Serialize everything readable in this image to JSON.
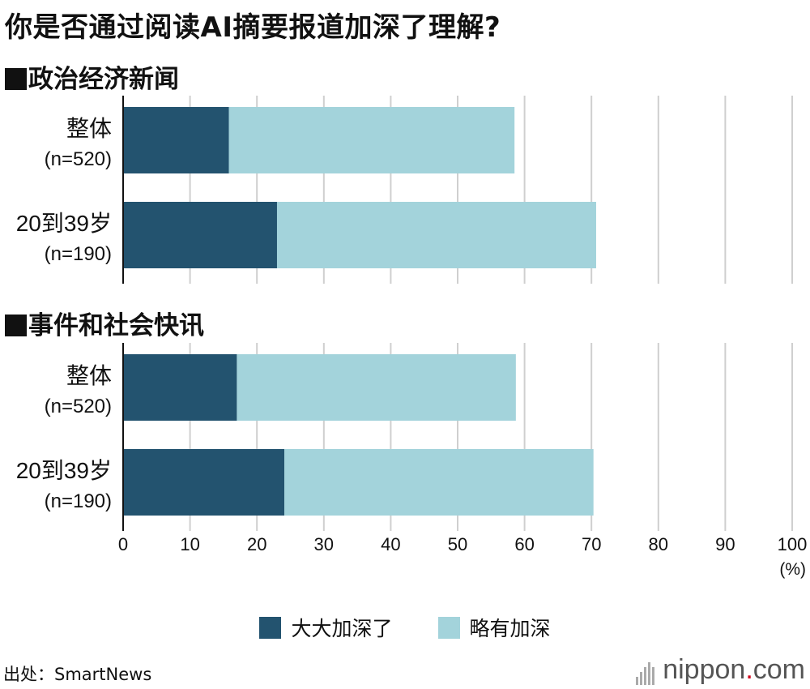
{
  "header": {
    "title": "你是否通过阅读AI摘要报道加深了理解?"
  },
  "chart_data": {
    "type": "bar",
    "stacked": true,
    "orientation": "horizontal",
    "xlim": [
      0,
      100
    ],
    "x_ticks": [
      "0",
      "10",
      "20",
      "30",
      "40",
      "50",
      "60",
      "70",
      "80",
      "90",
      "100"
    ],
    "x_unit": "(%)",
    "grid": true,
    "legend_position": "bottom",
    "colors": {
      "deep": "#23536f",
      "slight": "#a3d3db",
      "grid": "#cfcfcf",
      "axis": "#111111"
    },
    "series": [
      {
        "name": "大大加深了",
        "color": "#23536f"
      },
      {
        "name": "略有加深",
        "color": "#a3d3db"
      }
    ],
    "groups": [
      {
        "title": "政治经济新闻",
        "bars": [
          {
            "label": "整体",
            "n": "(n=520)",
            "values": [
              15.8,
              42.7
            ]
          },
          {
            "label": "20到39岁",
            "n": "(n=190)",
            "values": [
              23.0,
              47.7
            ]
          }
        ]
      },
      {
        "title": "事件和社会快讯",
        "bars": [
          {
            "label": "整体",
            "n": "(n=520)",
            "values": [
              17.0,
              41.7
            ]
          },
          {
            "label": "20到39岁",
            "n": "(n=190)",
            "values": [
              24.1,
              46.2
            ]
          }
        ]
      }
    ]
  },
  "footer": {
    "source": "出处：SmartNews",
    "brand_main": "nippon",
    "brand_dot": ".",
    "brand_tld": "com"
  }
}
